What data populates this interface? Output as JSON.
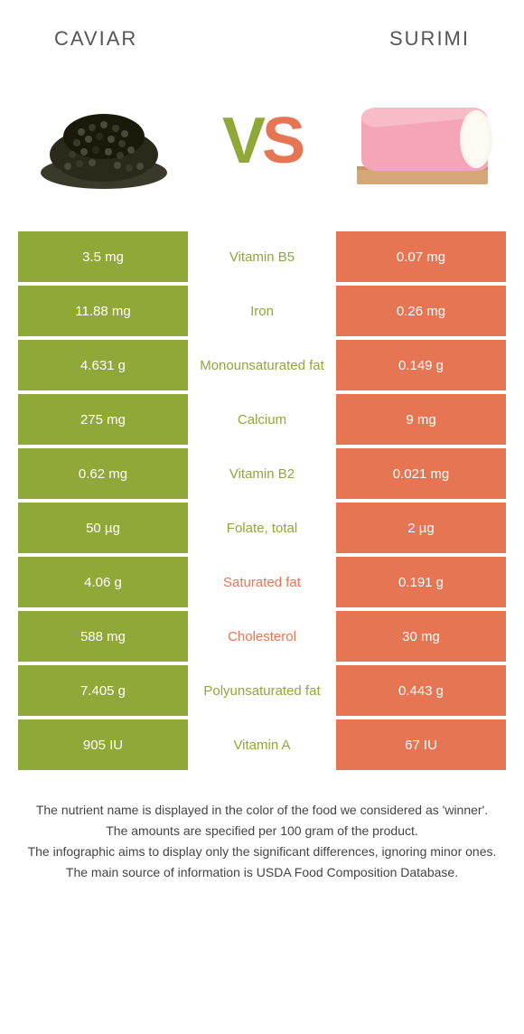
{
  "header": {
    "left_title": "Caviar",
    "right_title": "Surimi"
  },
  "vs": {
    "v": "V",
    "s": "S"
  },
  "colors": {
    "left_bg": "#8fa838",
    "right_bg": "#e67553",
    "left_text": "#8fa838",
    "right_text": "#e67553"
  },
  "table": {
    "rows": [
      {
        "left": "3.5 mg",
        "label": "Vitamin B5",
        "right": "0.07 mg",
        "winner": "left"
      },
      {
        "left": "11.88 mg",
        "label": "Iron",
        "right": "0.26 mg",
        "winner": "left"
      },
      {
        "left": "4.631 g",
        "label": "Monounsaturated fat",
        "right": "0.149 g",
        "winner": "left"
      },
      {
        "left": "275 mg",
        "label": "Calcium",
        "right": "9 mg",
        "winner": "left"
      },
      {
        "left": "0.62 mg",
        "label": "Vitamin B2",
        "right": "0.021 mg",
        "winner": "left"
      },
      {
        "left": "50 µg",
        "label": "Folate, total",
        "right": "2 µg",
        "winner": "left"
      },
      {
        "left": "4.06 g",
        "label": "Saturated fat",
        "right": "0.191 g",
        "winner": "right"
      },
      {
        "left": "588 mg",
        "label": "Cholesterol",
        "right": "30 mg",
        "winner": "right"
      },
      {
        "left": "7.405 g",
        "label": "Polyunsaturated fat",
        "right": "0.443 g",
        "winner": "left"
      },
      {
        "left": "905 IU",
        "label": "Vitamin A",
        "right": "67 IU",
        "winner": "left"
      }
    ]
  },
  "footnotes": {
    "line1": "The nutrient name is displayed in the color of the food we considered as 'winner'.",
    "line2": "The amounts are specified per 100 gram of the product.",
    "line3": "The infographic aims to display only the significant differences, ignoring minor ones.",
    "line4": "The main source of information is USDA Food Composition Database."
  }
}
